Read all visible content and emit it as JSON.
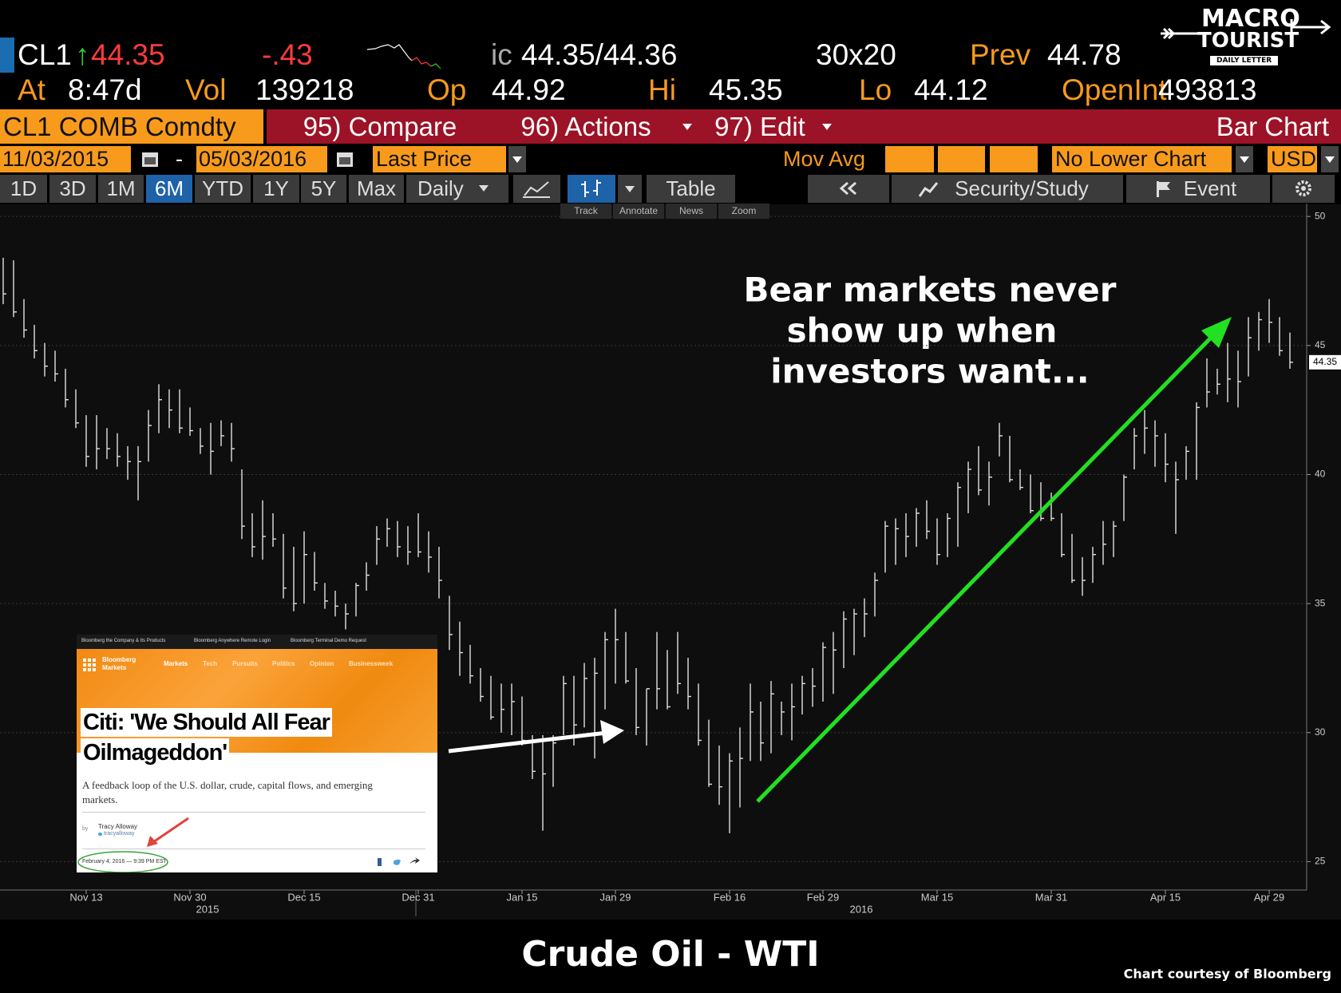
{
  "header": {
    "ticker": "CL1",
    "arrow": "↑",
    "last": "44.35",
    "change": "-.43",
    "bid_prefix": "ic",
    "bid_ask": "44.35/44.36",
    "size": "30x20",
    "prev_label": "Prev",
    "prev": "44.78",
    "time_label": "At",
    "time": "8:47d",
    "vol_label": "Vol",
    "vol": "139218",
    "open_label": "Op",
    "open": "44.92",
    "high_label": "Hi",
    "high": "45.35",
    "low_label": "Lo",
    "low": "44.12",
    "oi_label": "OpenInt",
    "oi": "493813"
  },
  "logo": {
    "line1": "MACRO",
    "line2": "TOURIST",
    "line3": "DAILY LETTER"
  },
  "toolbar": {
    "security": "CL1 COMB Comdty",
    "buttons": [
      "95) Compare",
      "96) Actions",
      "97) Edit"
    ],
    "chart_type": "Bar Chart"
  },
  "settings": {
    "start": "11/03/2015",
    "separator": "-",
    "end": "05/03/2016",
    "field": "Last Price",
    "study": "Mov Avg",
    "lower": "No Lower Chart",
    "currency": "USD"
  },
  "periods": [
    "1D",
    "3D",
    "1M",
    "6M",
    "YTD",
    "1Y",
    "5Y",
    "Max"
  ],
  "frequency": "Daily",
  "view": "Table",
  "study_button": "Security/Study",
  "event_button": "Event",
  "tools": [
    "Track",
    "Annotate",
    "News",
    "Zoom"
  ],
  "inset": {
    "links": [
      "Bloomberg the Company & Its Products",
      "Bloomberg Anywhere Remote Login",
      "Bloomberg Terminal Demo Request"
    ],
    "brand": "Bloomberg",
    "section": "Markets",
    "nav": [
      "Markets",
      "Tech",
      "Pursuits",
      "Politics",
      "Opinion",
      "Businessweek"
    ],
    "headline": [
      "Citi: 'We Should All Fear",
      "Oilmageddon'"
    ],
    "deck": "A feedback loop of the U.S. dollar, crude, capital flows, and emerging markets.",
    "by": "by",
    "author": "Tracy Alloway",
    "handle": "tracyalloway",
    "date": "February 4, 2016 — 9:39 PM EST"
  },
  "chart_data": {
    "type": "ohlc",
    "title": "Crude Oil - WTI",
    "annotation": [
      "Bear markets never",
      "show up when",
      "investors want..."
    ],
    "credit": "Chart courtesy of Bloomberg",
    "years": [
      "2015",
      "2016"
    ],
    "color": "#e2e2e2",
    "categories": [
      null,
      null,
      null,
      null,
      null,
      null,
      null,
      null,
      "Nov 13",
      null,
      null,
      null,
      null,
      null,
      null,
      null,
      null,
      null,
      "Nov 30",
      null,
      null,
      null,
      null,
      null,
      null,
      null,
      null,
      null,
      null,
      "Dec 15",
      null,
      null,
      null,
      null,
      null,
      null,
      null,
      null,
      null,
      null,
      "Dec 31",
      null,
      null,
      null,
      null,
      null,
      null,
      null,
      null,
      null,
      "Jan 15",
      null,
      null,
      null,
      null,
      null,
      null,
      null,
      null,
      "Jan 29",
      null,
      null,
      null,
      null,
      null,
      null,
      null,
      null,
      null,
      null,
      "Feb 16",
      null,
      null,
      null,
      null,
      null,
      null,
      null,
      null,
      "Feb 29",
      null,
      null,
      null,
      null,
      null,
      null,
      null,
      null,
      null,
      null,
      "Mar 15",
      null,
      null,
      null,
      null,
      null,
      null,
      null,
      null,
      null,
      null,
      "Mar 31",
      null,
      null,
      null,
      null,
      null,
      null,
      null,
      null,
      null,
      null,
      "Apr 15",
      null,
      null,
      null,
      null,
      null,
      null,
      null,
      null,
      null,
      "Apr 29",
      null,
      null
    ],
    "high": [
      48.4,
      48.3,
      46.8,
      45.8,
      45.1,
      44.8,
      44.1,
      43.3,
      42.3,
      42.3,
      41.8,
      41.6,
      41.1,
      41.1,
      42.5,
      43.5,
      43.3,
      43.3,
      42.6,
      41.8,
      42.0,
      42.1,
      42.0,
      40.2,
      38.5,
      39.0,
      38.5,
      37.7,
      37.2,
      37.8,
      37.0,
      35.8,
      35.5,
      35.0,
      35.8,
      36.6,
      38.0,
      38.3,
      38.2,
      38.0,
      38.5,
      37.8,
      37.2,
      35.3,
      34.3,
      33.4,
      32.5,
      32.2,
      31.9,
      31.9,
      31.4,
      29.9,
      29.9,
      29.9,
      32.2,
      32.2,
      32.7,
      32.9,
      33.9,
      34.8,
      33.9,
      32.5,
      31.7,
      33.9,
      33.2,
      33.9,
      32.9,
      31.9,
      30.5,
      29.5,
      29.2,
      30.2,
      31.9,
      31.2,
      32.0,
      31.2,
      31.9,
      32.2,
      32.5,
      33.5,
      33.9,
      34.7,
      34.8,
      35.2,
      36.2,
      38.2,
      38.3,
      38.5,
      38.7,
      39.0,
      38.3,
      38.5,
      39.7,
      40.5,
      41.1,
      40.5,
      42.0,
      41.5,
      40.2,
      40.0,
      39.7,
      39.3,
      38.5,
      37.7,
      36.8,
      37.2,
      38.2,
      38.2,
      40.0,
      41.8,
      42.5,
      42.1,
      41.6,
      40.5,
      41.1,
      42.8,
      44.5,
      44.1,
      45.1,
      44.8,
      46.1,
      46.3,
      46.8,
      46.1,
      45.5
    ],
    "low": [
      46.6,
      46.1,
      45.3,
      44.5,
      43.8,
      43.6,
      42.6,
      41.8,
      40.3,
      40.2,
      40.6,
      40.3,
      39.8,
      39.0,
      40.5,
      41.6,
      41.8,
      41.6,
      41.5,
      40.8,
      40.0,
      41.1,
      40.5,
      37.5,
      36.8,
      36.7,
      37.2,
      35.2,
      34.7,
      35.0,
      35.5,
      34.8,
      34.5,
      34.0,
      34.5,
      35.5,
      36.5,
      37.2,
      36.8,
      36.5,
      36.8,
      36.2,
      35.2,
      33.2,
      32.2,
      31.9,
      31.2,
      30.5,
      30.0,
      29.9,
      29.5,
      28.2,
      26.2,
      27.9,
      29.9,
      29.5,
      30.2,
      29.0,
      30.9,
      31.9,
      31.9,
      29.9,
      29.5,
      30.9,
      30.9,
      31.5,
      30.9,
      29.5,
      27.9,
      27.2,
      26.1,
      27.1,
      28.9,
      28.9,
      29.2,
      29.9,
      29.7,
      30.7,
      31.0,
      31.2,
      31.5,
      32.5,
      33.0,
      33.7,
      34.5,
      36.2,
      36.5,
      36.8,
      37.2,
      37.5,
      36.5,
      36.8,
      37.2,
      38.5,
      39.2,
      38.8,
      40.7,
      39.7,
      39.4,
      38.5,
      38.2,
      38.2,
      36.8,
      35.8,
      35.3,
      35.8,
      36.5,
      36.8,
      38.2,
      40.2,
      40.8,
      40.3,
      39.7,
      37.7,
      39.8,
      39.8,
      42.6,
      43.1,
      42.8,
      42.6,
      43.8,
      44.8,
      45.1,
      44.6,
      44.1
    ],
    "close": [
      47.0,
      46.3,
      45.6,
      44.8,
      44.2,
      43.9,
      42.9,
      42.0,
      40.7,
      41.0,
      41.0,
      40.7,
      40.5,
      40.5,
      41.9,
      42.9,
      42.5,
      41.8,
      41.7,
      41.1,
      40.9,
      41.5,
      41.0,
      38.0,
      37.2,
      37.6,
      37.5,
      35.6,
      35.0,
      36.9,
      35.8,
      35.1,
      34.9,
      34.6,
      35.7,
      36.1,
      37.5,
      37.9,
      37.2,
      37.0,
      37.0,
      36.8,
      35.9,
      33.8,
      33.1,
      32.2,
      31.4,
      30.6,
      30.9,
      31.2,
      29.7,
      28.5,
      28.4,
      29.6,
      31.9,
      30.3,
      32.1,
      32.3,
      33.6,
      33.6,
      32.0,
      30.2,
      31.7,
      31.7,
      31.0,
      31.9,
      31.4,
      29.7,
      28.0,
      27.9,
      28.9,
      29.0,
      30.8,
      29.6,
      31.5,
      30.8,
      31.0,
      31.9,
      31.8,
      33.3,
      33.2,
      34.4,
      34.6,
      34.6,
      35.9,
      38.0,
      37.9,
      37.6,
      38.5,
      37.8,
      36.9,
      38.3,
      39.5,
      40.2,
      39.4,
      39.9,
      41.5,
      39.8,
      39.5,
      38.6,
      38.3,
      38.3,
      36.9,
      35.9,
      35.9,
      36.9,
      37.3,
      38.0,
      39.9,
      41.5,
      41.8,
      41.5,
      40.4,
      39.8,
      40.9,
      42.6,
      43.2,
      43.5,
      43.7,
      43.6,
      45.3,
      46.0,
      45.9,
      44.8,
      44.35
    ],
    "last_value": 44.35,
    "ylim": [
      23.9,
      50.5
    ],
    "yticks": [
      25,
      30,
      35,
      40,
      45,
      50
    ],
    "grid": true
  }
}
